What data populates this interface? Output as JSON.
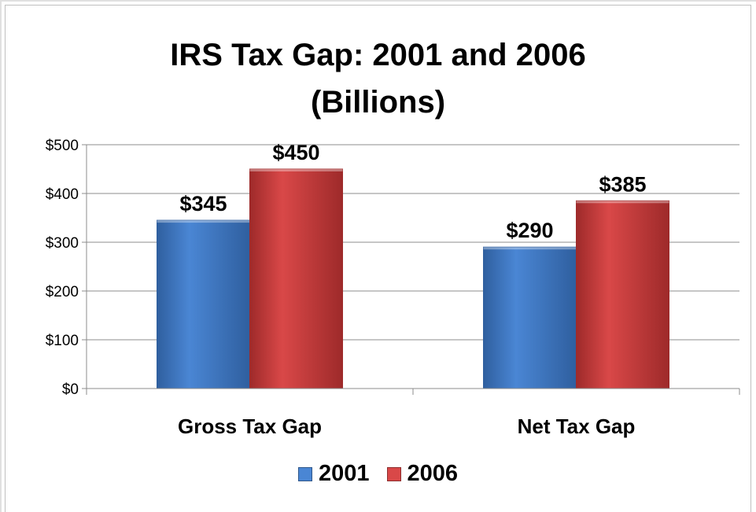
{
  "chart_data": {
    "type": "bar",
    "title_line1": "IRS Tax Gap:  2001 and 2006",
    "title_line2": "(Billions)",
    "categories": [
      "Gross Tax Gap",
      "Net Tax Gap"
    ],
    "series": [
      {
        "name": "2001",
        "values": [
          345,
          290
        ],
        "labels": [
          "$345",
          "$290"
        ],
        "color": "#4a86d4",
        "colorDark": "#2f5f9f"
      },
      {
        "name": "2006",
        "values": [
          450,
          385
        ],
        "labels": [
          "$450",
          "$385"
        ],
        "color": "#d94848",
        "colorDark": "#9e2a2a"
      }
    ],
    "yticks": [
      {
        "value": 0,
        "label": "$0"
      },
      {
        "value": 100,
        "label": "$100"
      },
      {
        "value": 200,
        "label": "$200"
      },
      {
        "value": 300,
        "label": "$300"
      },
      {
        "value": 400,
        "label": "$400"
      },
      {
        "value": 500,
        "label": "$500"
      }
    ],
    "ylim": [
      0,
      500
    ],
    "grid": true,
    "legend_position": "bottom"
  }
}
